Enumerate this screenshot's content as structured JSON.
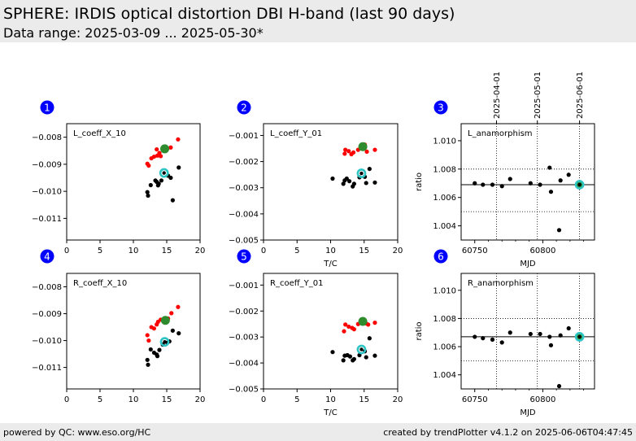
{
  "header": {
    "title": "SPHERE: IRDIS optical distortion DBI H-band (last 90 days)",
    "subtitle": "Data range: 2025-03-09 ... 2025-05-30*"
  },
  "footer": {
    "left": "powered by QC: www.eso.org/HC",
    "right": "created by trendPlotter v4.1.2 on 2025-06-06T04:47:45"
  },
  "colors": {
    "header_bg": "#ebebeb",
    "badge": "#0000ff",
    "black_points": "#000000",
    "red_points": "#ff0000",
    "latest_marker": "#2e8b2e",
    "latest_ring": "#2ec4c4"
  },
  "chart_data": [
    {
      "id": "1",
      "badge": "1",
      "type": "scatter",
      "label": "L_coeff_X_10",
      "xlabel": "",
      "xlim": [
        0,
        20
      ],
      "ylim": [
        -0.0118,
        -0.0075
      ],
      "xticks": [
        0,
        5,
        10,
        15,
        20
      ],
      "xtick_labels": [
        "0",
        "5",
        "10",
        "15",
        "20"
      ],
      "yticks": [
        -0.011,
        -0.01,
        -0.009,
        -0.008
      ],
      "ytick_labels": [
        "−0.011",
        "−0.010",
        "−0.009",
        "−0.008"
      ],
      "series": [
        {
          "role": "black",
          "points": [
            [
              12.1,
              -0.01003
            ],
            [
              12.2,
              -0.01016
            ],
            [
              12.6,
              -0.00977
            ],
            [
              13.3,
              -0.0096
            ],
            [
              13.5,
              -0.00965
            ],
            [
              13.7,
              -0.00978
            ],
            [
              13.8,
              -0.00972
            ],
            [
              14.2,
              -0.0096
            ],
            [
              15.2,
              -0.00942
            ],
            [
              15.6,
              -0.0095
            ],
            [
              15.9,
              -0.01033
            ],
            [
              16.8,
              -0.00912
            ]
          ]
        },
        {
          "role": "red",
          "points": [
            [
              12.1,
              -0.00898
            ],
            [
              12.3,
              -0.00905
            ],
            [
              12.7,
              -0.00878
            ],
            [
              13.1,
              -0.00872
            ],
            [
              13.5,
              -0.00845
            ],
            [
              13.6,
              -0.00868
            ],
            [
              13.9,
              -0.00858
            ],
            [
              14.1,
              -0.0087
            ],
            [
              14.5,
              -0.0085
            ],
            [
              15.1,
              -0.00842
            ],
            [
              15.6,
              -0.00838
            ],
            [
              16.7,
              -0.00808
            ]
          ]
        },
        {
          "role": "latest_green",
          "points": [
            [
              14.7,
              -0.00843
            ]
          ]
        },
        {
          "role": "latest_cyan",
          "points": [
            [
              14.6,
              -0.00932
            ]
          ]
        }
      ]
    },
    {
      "id": "2",
      "badge": "2",
      "type": "scatter",
      "label": "L_coeff_Y_01",
      "xlabel": "T/C",
      "xlim": [
        0,
        20
      ],
      "ylim": [
        -0.005,
        -0.00055
      ],
      "xticks": [
        0,
        5,
        10,
        15,
        20
      ],
      "xtick_labels": [
        "0",
        "5",
        "10",
        "15",
        "20"
      ],
      "yticks": [
        -0.005,
        -0.004,
        -0.003,
        -0.002,
        -0.001
      ],
      "ytick_labels": [
        "−0.005",
        "−0.004",
        "−0.003",
        "−0.002",
        "−0.001"
      ],
      "series": [
        {
          "role": "black",
          "points": [
            [
              10.3,
              -0.00265
            ],
            [
              11.9,
              -0.00285
            ],
            [
              12.1,
              -0.00272
            ],
            [
              12.4,
              -0.00265
            ],
            [
              12.8,
              -0.00275
            ],
            [
              13.3,
              -0.00295
            ],
            [
              13.5,
              -0.00285
            ],
            [
              14.3,
              -0.0026
            ],
            [
              15.1,
              -0.00258
            ],
            [
              15.3,
              -0.00282
            ],
            [
              15.8,
              -0.00228
            ],
            [
              16.6,
              -0.0028
            ]
          ]
        },
        {
          "role": "red",
          "points": [
            [
              12.1,
              -0.0017
            ],
            [
              12.2,
              -0.00155
            ],
            [
              12.7,
              -0.0016
            ],
            [
              13.1,
              -0.00172
            ],
            [
              13.4,
              -0.00165
            ],
            [
              14.1,
              -0.00155
            ],
            [
              14.6,
              -0.00138
            ],
            [
              15.1,
              -0.00135
            ],
            [
              15.4,
              -0.00162
            ],
            [
              16.6,
              -0.00155
            ]
          ]
        },
        {
          "role": "latest_green",
          "points": [
            [
              14.8,
              -0.00143
            ]
          ]
        },
        {
          "role": "latest_cyan",
          "points": [
            [
              14.6,
              -0.00245
            ]
          ]
        }
      ]
    },
    {
      "id": "3",
      "badge": "3",
      "type": "scatter",
      "label": "L_anamorphism",
      "xlabel": "MJD",
      "ylabel": "ratio",
      "xlim": [
        60740,
        60838
      ],
      "ylim": [
        1.003,
        1.0112
      ],
      "xticks": [
        60750,
        60800
      ],
      "xtick_labels": [
        "60750",
        "60800"
      ],
      "minor_xticks": [
        60760,
        60770,
        60780,
        60790,
        60810,
        60820,
        60830
      ],
      "yticks": [
        1.004,
        1.006,
        1.008,
        1.01
      ],
      "ytick_labels": [
        "1.004",
        "1.006",
        "1.008",
        "1.010"
      ],
      "hline": 1.0069,
      "hgrid": [
        1.005,
        1.008
      ],
      "vgrid": [
        60766,
        60796,
        60827
      ],
      "top_tick_labels": [
        "2025-04-01",
        "2025-05-01",
        "2025-06-01"
      ],
      "series": [
        {
          "role": "black",
          "points": [
            [
              60750,
              1.007
            ],
            [
              60756,
              1.0069
            ],
            [
              60763,
              1.0069
            ],
            [
              60770,
              1.0068
            ],
            [
              60776,
              1.0073
            ],
            [
              60791,
              1.007
            ],
            [
              60798,
              1.0069
            ],
            [
              60805,
              1.0081
            ],
            [
              60806,
              1.0064
            ],
            [
              60812,
              1.0037
            ],
            [
              60813,
              1.0072
            ],
            [
              60819,
              1.0076
            ]
          ]
        },
        {
          "role": "latest_green",
          "points": [
            [
              60827,
              1.0069
            ]
          ]
        },
        {
          "role": "latest_cyan",
          "points": [
            [
              60827,
              1.0069
            ]
          ]
        }
      ]
    },
    {
      "id": "4",
      "badge": "4",
      "type": "scatter",
      "label": "R_coeff_X_10",
      "xlabel": "",
      "xlim": [
        0,
        20
      ],
      "ylim": [
        -0.0118,
        -0.0075
      ],
      "xticks": [
        0,
        5,
        10,
        15,
        20
      ],
      "xtick_labels": [
        "0",
        "5",
        "10",
        "15",
        "20"
      ],
      "yticks": [
        -0.011,
        -0.01,
        -0.009,
        -0.008
      ],
      "ytick_labels": [
        "−0.011",
        "−0.010",
        "−0.009",
        "−0.008"
      ],
      "series": [
        {
          "role": "black",
          "points": [
            [
              12.1,
              -0.01072
            ],
            [
              12.2,
              -0.0109
            ],
            [
              12.6,
              -0.01033
            ],
            [
              13.1,
              -0.01045
            ],
            [
              13.5,
              -0.01052
            ],
            [
              13.6,
              -0.01058
            ],
            [
              13.9,
              -0.01035
            ],
            [
              14.4,
              -0.01015
            ],
            [
              15.1,
              -0.01008
            ],
            [
              15.4,
              -0.01003
            ],
            [
              15.9,
              -0.00963
            ],
            [
              16.8,
              -0.00973
            ]
          ]
        },
        {
          "role": "red",
          "points": [
            [
              12.1,
              -0.0098
            ],
            [
              12.3,
              -0.01
            ],
            [
              12.7,
              -0.0095
            ],
            [
              13.1,
              -0.00955
            ],
            [
              13.5,
              -0.0094
            ],
            [
              13.7,
              -0.0093
            ],
            [
              14.1,
              -0.00922
            ],
            [
              14.5,
              -0.00928
            ],
            [
              15.2,
              -0.00918
            ],
            [
              15.7,
              -0.00898
            ],
            [
              16.7,
              -0.00875
            ]
          ]
        },
        {
          "role": "latest_green",
          "points": [
            [
              14.8,
              -0.00925
            ]
          ]
        },
        {
          "role": "latest_cyan",
          "points": [
            [
              14.7,
              -0.01005
            ]
          ]
        }
      ]
    },
    {
      "id": "5",
      "badge": "5",
      "type": "scatter",
      "label": "R_coeff_Y_01",
      "xlabel": "T/C",
      "xlim": [
        0,
        20
      ],
      "ylim": [
        -0.005,
        -0.00055
      ],
      "xticks": [
        0,
        5,
        10,
        15,
        20
      ],
      "xtick_labels": [
        "0",
        "5",
        "10",
        "15",
        "20"
      ],
      "yticks": [
        -0.005,
        -0.004,
        -0.003,
        -0.002,
        -0.001
      ],
      "ytick_labels": [
        "−0.005",
        "−0.004",
        "−0.003",
        "−0.002",
        "−0.001"
      ],
      "series": [
        {
          "role": "black",
          "points": [
            [
              10.3,
              -0.00358
            ],
            [
              11.9,
              -0.0039
            ],
            [
              12.1,
              -0.00372
            ],
            [
              12.5,
              -0.0037
            ],
            [
              12.9,
              -0.00375
            ],
            [
              13.3,
              -0.0039
            ],
            [
              13.5,
              -0.00385
            ],
            [
              14.3,
              -0.0037
            ],
            [
              15.1,
              -0.00355
            ],
            [
              15.3,
              -0.00378
            ],
            [
              15.8,
              -0.00305
            ],
            [
              16.6,
              -0.00372
            ]
          ]
        },
        {
          "role": "red",
          "points": [
            [
              12.0,
              -0.00278
            ],
            [
              12.2,
              -0.00252
            ],
            [
              12.7,
              -0.0026
            ],
            [
              13.2,
              -0.00265
            ],
            [
              13.5,
              -0.0027
            ],
            [
              14.1,
              -0.0025
            ],
            [
              14.6,
              -0.0024
            ],
            [
              15.3,
              -0.00248
            ],
            [
              15.6,
              -0.00252
            ],
            [
              16.6,
              -0.00245
            ]
          ]
        },
        {
          "role": "latest_green",
          "points": [
            [
              14.8,
              -0.0024
            ]
          ]
        },
        {
          "role": "latest_cyan",
          "points": [
            [
              14.6,
              -0.00348
            ]
          ]
        }
      ]
    },
    {
      "id": "6",
      "badge": "6",
      "type": "scatter",
      "label": "R_anamorphism",
      "xlabel": "MJD",
      "ylabel": "ratio",
      "xlim": [
        60740,
        60838
      ],
      "ylim": [
        1.003,
        1.0112
      ],
      "xticks": [
        60750,
        60800
      ],
      "xtick_labels": [
        "60750",
        "60800"
      ],
      "minor_xticks": [
        60760,
        60770,
        60780,
        60790,
        60810,
        60820,
        60830
      ],
      "yticks": [
        1.004,
        1.006,
        1.008,
        1.01
      ],
      "ytick_labels": [
        "1.004",
        "1.006",
        "1.008",
        "1.010"
      ],
      "hline": 1.0067,
      "hgrid": [
        1.005,
        1.008
      ],
      "vgrid": [
        60766,
        60796,
        60827
      ],
      "top_tick_labels": [],
      "series": [
        {
          "role": "black",
          "points": [
            [
              60750,
              1.0067
            ],
            [
              60756,
              1.0066
            ],
            [
              60763,
              1.0065
            ],
            [
              60770,
              1.0063
            ],
            [
              60776,
              1.007
            ],
            [
              60791,
              1.0069
            ],
            [
              60798,
              1.0069
            ],
            [
              60805,
              1.0067
            ],
            [
              60806,
              1.0061
            ],
            [
              60812,
              1.0032
            ],
            [
              60813,
              1.0068
            ],
            [
              60819,
              1.0073
            ]
          ]
        },
        {
          "role": "latest_green",
          "points": [
            [
              60827,
              1.0067
            ]
          ]
        },
        {
          "role": "latest_cyan",
          "points": [
            [
              60827,
              1.0067
            ]
          ]
        }
      ]
    }
  ]
}
